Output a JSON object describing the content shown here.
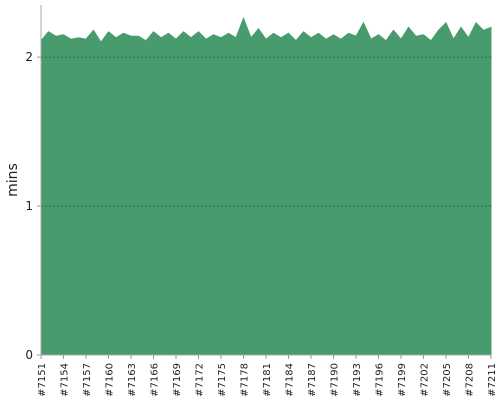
{
  "chart_data": {
    "type": "area",
    "y_label": "mins",
    "categories": [
      "#7151",
      null,
      null,
      "#7154",
      null,
      null,
      "#7157",
      null,
      null,
      "#7160",
      null,
      null,
      "#7163",
      null,
      null,
      "#7166",
      null,
      null,
      "#7169",
      null,
      null,
      "#7172",
      null,
      null,
      "#7175",
      null,
      null,
      "#7178",
      null,
      null,
      "#7181",
      null,
      null,
      "#7184",
      null,
      null,
      "#7187",
      null,
      null,
      "#7190",
      null,
      null,
      "#7193",
      null,
      null,
      "#7196",
      null,
      null,
      "#7199",
      null,
      null,
      "#7202",
      null,
      null,
      "#7205",
      null,
      null,
      "#7208",
      null,
      null,
      "#7211"
    ],
    "values": [
      2.11,
      2.17,
      2.14,
      2.15,
      2.12,
      2.13,
      2.12,
      2.18,
      2.1,
      2.17,
      2.13,
      2.16,
      2.14,
      2.14,
      2.11,
      2.17,
      2.13,
      2.16,
      2.12,
      2.17,
      2.13,
      2.17,
      2.12,
      2.15,
      2.13,
      2.16,
      2.13,
      2.26,
      2.13,
      2.19,
      2.12,
      2.16,
      2.13,
      2.16,
      2.11,
      2.17,
      2.13,
      2.16,
      2.12,
      2.15,
      2.12,
      2.16,
      2.14,
      2.23,
      2.12,
      2.15,
      2.11,
      2.18,
      2.12,
      2.2,
      2.14,
      2.15,
      2.11,
      2.18,
      2.23,
      2.12,
      2.2,
      2.13,
      2.23,
      2.18,
      2.2
    ],
    "color": "#489b6d",
    "ylim": [
      0,
      2.35
    ],
    "yticks": [
      0,
      1,
      2
    ],
    "grid": true
  }
}
